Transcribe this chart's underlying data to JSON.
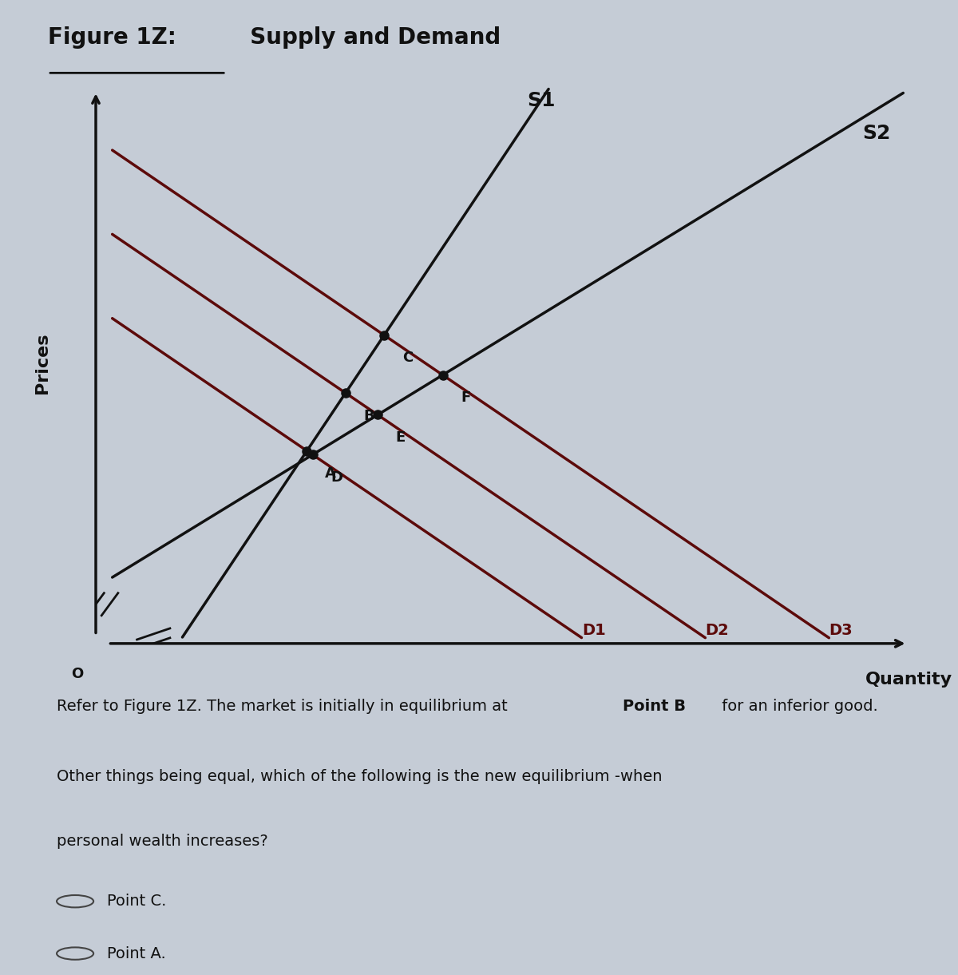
{
  "title_underlined": "Figure 1Z:",
  "title_rest": "  Supply and Demand",
  "ylabel": "Prices",
  "xlabel": "Quantity",
  "bg_color": "#c5ccd6",
  "line_color_supply": "#111111",
  "line_color_demand": "#5c0a0a",
  "axis_color": "#111111",
  "point_color": "#111111",
  "s1_label": "S1",
  "s2_label": "S2",
  "d1_label": "D1",
  "d2_label": "D2",
  "d3_label": "D3",
  "s1_slope": 2.2,
  "s1_intercept": -2.2,
  "s2_slope": 0.9,
  "s2_intercept": 1.0,
  "d1_intercept": 6.0,
  "d2_intercept": 7.5,
  "d3_intercept": 9.0,
  "demand_slope": -1.0,
  "xlim": [
    0,
    10
  ],
  "ylim": [
    0,
    10
  ],
  "q_pre": "Refer to Figure 1Z. The market is initially in equilibrium at ",
  "q_bold": "Point B",
  "q_post": " for an inferior good.",
  "q_line2": "Other things being equal, which of the following is the new equilibrium -when",
  "q_line3": "personal wealth increases?",
  "option1": "Point C.",
  "option2": "Point A.",
  "font_size_title": 20,
  "font_size_axis_label": 16,
  "font_size_curve_label": 18,
  "font_size_point_label": 13,
  "font_size_question": 14,
  "lw_lines": 2.5,
  "point_markersize": 8
}
